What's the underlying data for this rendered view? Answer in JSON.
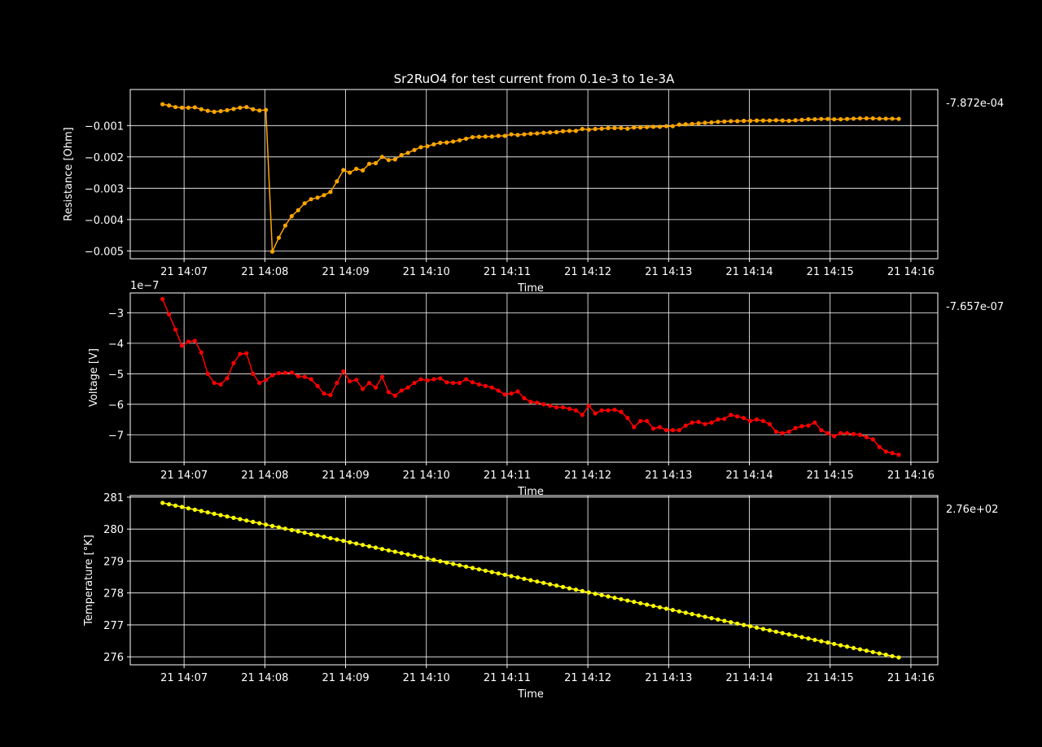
{
  "figure": {
    "title": "Sr2RuO4 for test current from 0.1e-3 to 1e-3A",
    "background": "#000000",
    "foreground": "#ffffff",
    "grid_color": "#ffffff"
  },
  "chart_data": [
    {
      "type": "line",
      "title": "Sr2RuO4 for test current from 0.1e-3 to 1e-3A",
      "xlabel": "Time",
      "ylabel": "Resistance [Ohm]",
      "xlim": [
        "14:06:20",
        "14:16:20"
      ],
      "xticks": [
        "14:07:00",
        "14:08:00",
        "14:09:00",
        "14:10:00",
        "14:11:00",
        "14:12:00",
        "14:13:00",
        "14:14:00",
        "14:15:00",
        "14:16:00"
      ],
      "xticklabels": [
        "21 14:07",
        "21 14:08",
        "21 14:09",
        "21 14:10",
        "21 14:11",
        "21 14:12",
        "21 14:13",
        "21 14:14",
        "21 14:15",
        "21 14:16"
      ],
      "ylim": [
        -0.00525,
        0.00015
      ],
      "yticks": [
        -0.005,
        -0.004,
        -0.003,
        -0.002,
        -0.001
      ],
      "yticklabels": [
        "−0.005",
        "−0.004",
        "−0.003",
        "−0.002",
        "−0.001"
      ],
      "grid": true,
      "last_value_label": "-7.872e-04",
      "marker": "circle",
      "series": [
        {
          "color": "#ffa500",
          "x_start": "14:06:44",
          "x_end": "14:15:51",
          "values": [
            -0.00032,
            -0.00036,
            -0.00041,
            -0.00043,
            -0.00043,
            -0.00042,
            -0.00048,
            -0.00053,
            -0.00056,
            -0.00054,
            -0.00051,
            -0.00047,
            -0.00043,
            -0.00041,
            -0.00048,
            -0.00052,
            -0.0005,
            -0.00502,
            -0.00458,
            -0.00419,
            -0.00389,
            -0.0037,
            -0.00348,
            -0.00335,
            -0.0033,
            -0.00322,
            -0.00312,
            -0.00278,
            -0.00242,
            -0.0025,
            -0.00238,
            -0.00243,
            -0.00222,
            -0.0022,
            -0.002,
            -0.0021,
            -0.00208,
            -0.00194,
            -0.00187,
            -0.00178,
            -0.00169,
            -0.00166,
            -0.0016,
            -0.00155,
            -0.00154,
            -0.00151,
            -0.00147,
            -0.00142,
            -0.00137,
            -0.00136,
            -0.00135,
            -0.00135,
            -0.00133,
            -0.00133,
            -0.00128,
            -0.0013,
            -0.00128,
            -0.00126,
            -0.00125,
            -0.00123,
            -0.00122,
            -0.00121,
            -0.00118,
            -0.00117,
            -0.00117,
            -0.00111,
            -0.00113,
            -0.00111,
            -0.0011,
            -0.00108,
            -0.00108,
            -0.00108,
            -0.0011,
            -0.00106,
            -0.00106,
            -0.00105,
            -0.00104,
            -0.00104,
            -0.00102,
            -0.00102,
            -0.00097,
            -0.00096,
            -0.00095,
            -0.00093,
            -0.00091,
            -0.0009,
            -0.00088,
            -0.00087,
            -0.00086,
            -0.00086,
            -0.00085,
            -0.00085,
            -0.00084,
            -0.00084,
            -0.00084,
            -0.00083,
            -0.00084,
            -0.00085,
            -0.00083,
            -0.00082,
            -0.0008,
            -0.0008,
            -0.00079,
            -0.00079,
            -0.0008,
            -0.0008,
            -0.00079,
            -0.00078,
            -0.00077,
            -0.00077,
            -0.00077,
            -0.00078,
            -0.00078,
            -0.00078,
            -0.000787
          ]
        }
      ]
    },
    {
      "type": "line",
      "xlabel": "Time",
      "ylabel": "Voltage [V]",
      "xlim": [
        "14:06:20",
        "14:16:20"
      ],
      "xticks": [
        "14:07:00",
        "14:08:00",
        "14:09:00",
        "14:10:00",
        "14:11:00",
        "14:12:00",
        "14:13:00",
        "14:14:00",
        "14:15:00",
        "14:16:00"
      ],
      "xticklabels": [
        "21 14:07",
        "21 14:08",
        "21 14:09",
        "21 14:10",
        "21 14:11",
        "21 14:12",
        "21 14:13",
        "21 14:14",
        "21 14:15",
        "21 14:16"
      ],
      "ylim": [
        -7.9e-07,
        -2.35e-07
      ],
      "yticks": [
        -7e-07,
        -6e-07,
        -5e-07,
        -4e-07,
        -3e-07
      ],
      "yticklabels": [
        "−7",
        "−6",
        "−5",
        "−4",
        "−3"
      ],
      "offset_label": "1e−7",
      "grid": true,
      "last_value_label": "-7.657e-07",
      "marker": "circle",
      "series": [
        {
          "color": "#ff0000",
          "x_start": "14:06:44",
          "x_end": "14:15:51",
          "values": [
            -2.55e-07,
            -3.05e-07,
            -3.55e-07,
            -4.08e-07,
            -3.95e-07,
            -3.92e-07,
            -4.3e-07,
            -5e-07,
            -5.3e-07,
            -5.35e-07,
            -5.15e-07,
            -4.65e-07,
            -4.35e-07,
            -4.33e-07,
            -5e-07,
            -5.3e-07,
            -5.2e-07,
            -5.05e-07,
            -4.98e-07,
            -4.97e-07,
            -4.96e-07,
            -5.08e-07,
            -5.1e-07,
            -5.18e-07,
            -5.4e-07,
            -5.65e-07,
            -5.7e-07,
            -5.3e-07,
            -4.92e-07,
            -5.25e-07,
            -5.2e-07,
            -5.5e-07,
            -5.3e-07,
            -5.45e-07,
            -5.1e-07,
            -5.6e-07,
            -5.72e-07,
            -5.55e-07,
            -5.45e-07,
            -5.3e-07,
            -5.18e-07,
            -5.22e-07,
            -5.18e-07,
            -5.15e-07,
            -5.28e-07,
            -5.3e-07,
            -5.3e-07,
            -5.18e-07,
            -5.28e-07,
            -5.35e-07,
            -5.4e-07,
            -5.45e-07,
            -5.55e-07,
            -5.68e-07,
            -5.65e-07,
            -5.58e-07,
            -5.8e-07,
            -5.92e-07,
            -5.95e-07,
            -6e-07,
            -6.05e-07,
            -6.1e-07,
            -6.1e-07,
            -6.15e-07,
            -6.2e-07,
            -6.35e-07,
            -6.05e-07,
            -6.3e-07,
            -6.2e-07,
            -6.2e-07,
            -6.18e-07,
            -6.25e-07,
            -6.45e-07,
            -6.75e-07,
            -6.55e-07,
            -6.55e-07,
            -6.8e-07,
            -6.75e-07,
            -6.85e-07,
            -6.85e-07,
            -6.85e-07,
            -6.7e-07,
            -6.6e-07,
            -6.58e-07,
            -6.65e-07,
            -6.6e-07,
            -6.5e-07,
            -6.48e-07,
            -6.35e-07,
            -6.4e-07,
            -6.45e-07,
            -6.55e-07,
            -6.5e-07,
            -6.55e-07,
            -6.65e-07,
            -6.9e-07,
            -6.95e-07,
            -6.9e-07,
            -6.78e-07,
            -6.72e-07,
            -6.7e-07,
            -6.6e-07,
            -6.85e-07,
            -6.95e-07,
            -7.05e-07,
            -6.95e-07,
            -6.95e-07,
            -6.98e-07,
            -7e-07,
            -7.08e-07,
            -7.15e-07,
            -7.4e-07,
            -7.55e-07,
            -7.6e-07,
            -7.657e-07
          ]
        }
      ]
    },
    {
      "type": "line",
      "xlabel": "Time",
      "ylabel": "Temperature [°K]",
      "xlim": [
        "14:06:20",
        "14:16:20"
      ],
      "xticks": [
        "14:07:00",
        "14:08:00",
        "14:09:00",
        "14:10:00",
        "14:11:00",
        "14:12:00",
        "14:13:00",
        "14:14:00",
        "14:15:00",
        "14:16:00"
      ],
      "xticklabels": [
        "21 14:07",
        "21 14:08",
        "21 14:09",
        "21 14:10",
        "21 14:11",
        "21 14:12",
        "21 14:13",
        "21 14:14",
        "21 14:15",
        "21 14:16"
      ],
      "ylim": [
        275.75,
        281.05
      ],
      "yticks": [
        276,
        277,
        278,
        279,
        280,
        281
      ],
      "yticklabels": [
        "276",
        "277",
        "278",
        "279",
        "280",
        "281"
      ],
      "grid": true,
      "last_value_label": "2.76e+02",
      "marker": "circle",
      "series": [
        {
          "color": "#ffff00",
          "x_start": "14:06:44",
          "x_end": "14:15:51",
          "y_start": 280.82,
          "y_end": 275.98,
          "n_points": 115
        }
      ]
    }
  ]
}
